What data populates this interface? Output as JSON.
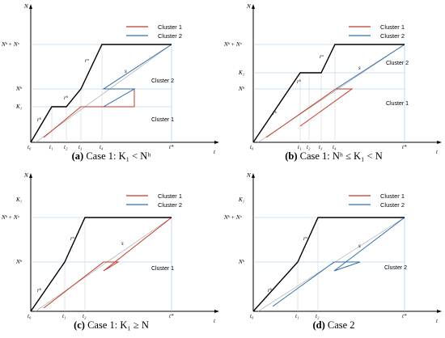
{
  "colors": {
    "total": "#000000",
    "cluster1": "#c0392b",
    "cluster2": "#2e6db0",
    "guide": "#9dc3e6",
    "ref": "#aaaaaa"
  },
  "legend": {
    "cluster1": "Cluster 1",
    "cluster2": "Cluster 2"
  },
  "axes": {
    "y": "N",
    "x": "t"
  },
  "panels": [
    {
      "caption_letter": "(a)",
      "caption_text": "Case 1: K₁ < Nʰ",
      "y_ticks": [
        "Nʰ + Nᵒ",
        "Nʰ",
        "K₁"
      ],
      "x_ticks": [
        "t₀",
        "t₁",
        "t₂",
        "t₃",
        "t₄",
        "t*"
      ],
      "curve_labels": [
        "rᵒ",
        "s",
        "rʰ",
        "rᵏ"
      ],
      "region_labels": [
        "Cluster 2",
        "Cluster 1"
      ]
    },
    {
      "caption_letter": "(b)",
      "caption_text": "Case 1: Nʰ ≤ K₁ < N",
      "y_ticks": [
        "Nʰ + Nᵒ",
        "K₁",
        "Nʰ"
      ],
      "x_ticks": [
        "t₀",
        "t₁",
        "t₂",
        "t₃",
        "t₄",
        "t*"
      ],
      "curve_labels": [
        "rᵒ",
        "s",
        "rʰ",
        "rᵏ"
      ],
      "region_labels": [
        "Cluster 2",
        "Cluster 1"
      ]
    },
    {
      "caption_letter": "(c)",
      "caption_text": "Case 1: K₁ ≥ N",
      "y_ticks": [
        "K₁",
        "Nʰ + Nᵒ",
        "Nʰ"
      ],
      "x_ticks": [
        "t₀",
        "t₁",
        "t₂",
        "t*"
      ],
      "curve_labels": [
        "rᵒ",
        "s",
        "rʰ"
      ],
      "region_labels": [
        "Cluster 1"
      ]
    },
    {
      "caption_letter": "(d)",
      "caption_text": "Case 2",
      "y_ticks": [
        "K₁",
        "Nʰ + Nᵒ",
        "Nʰ"
      ],
      "x_ticks": [
        "t₀",
        "t₁",
        "t₂",
        "t*"
      ],
      "curve_labels": [
        "rᵒ",
        "s",
        "rʰ"
      ],
      "region_labels": [
        "Cluster 2"
      ]
    }
  ]
}
